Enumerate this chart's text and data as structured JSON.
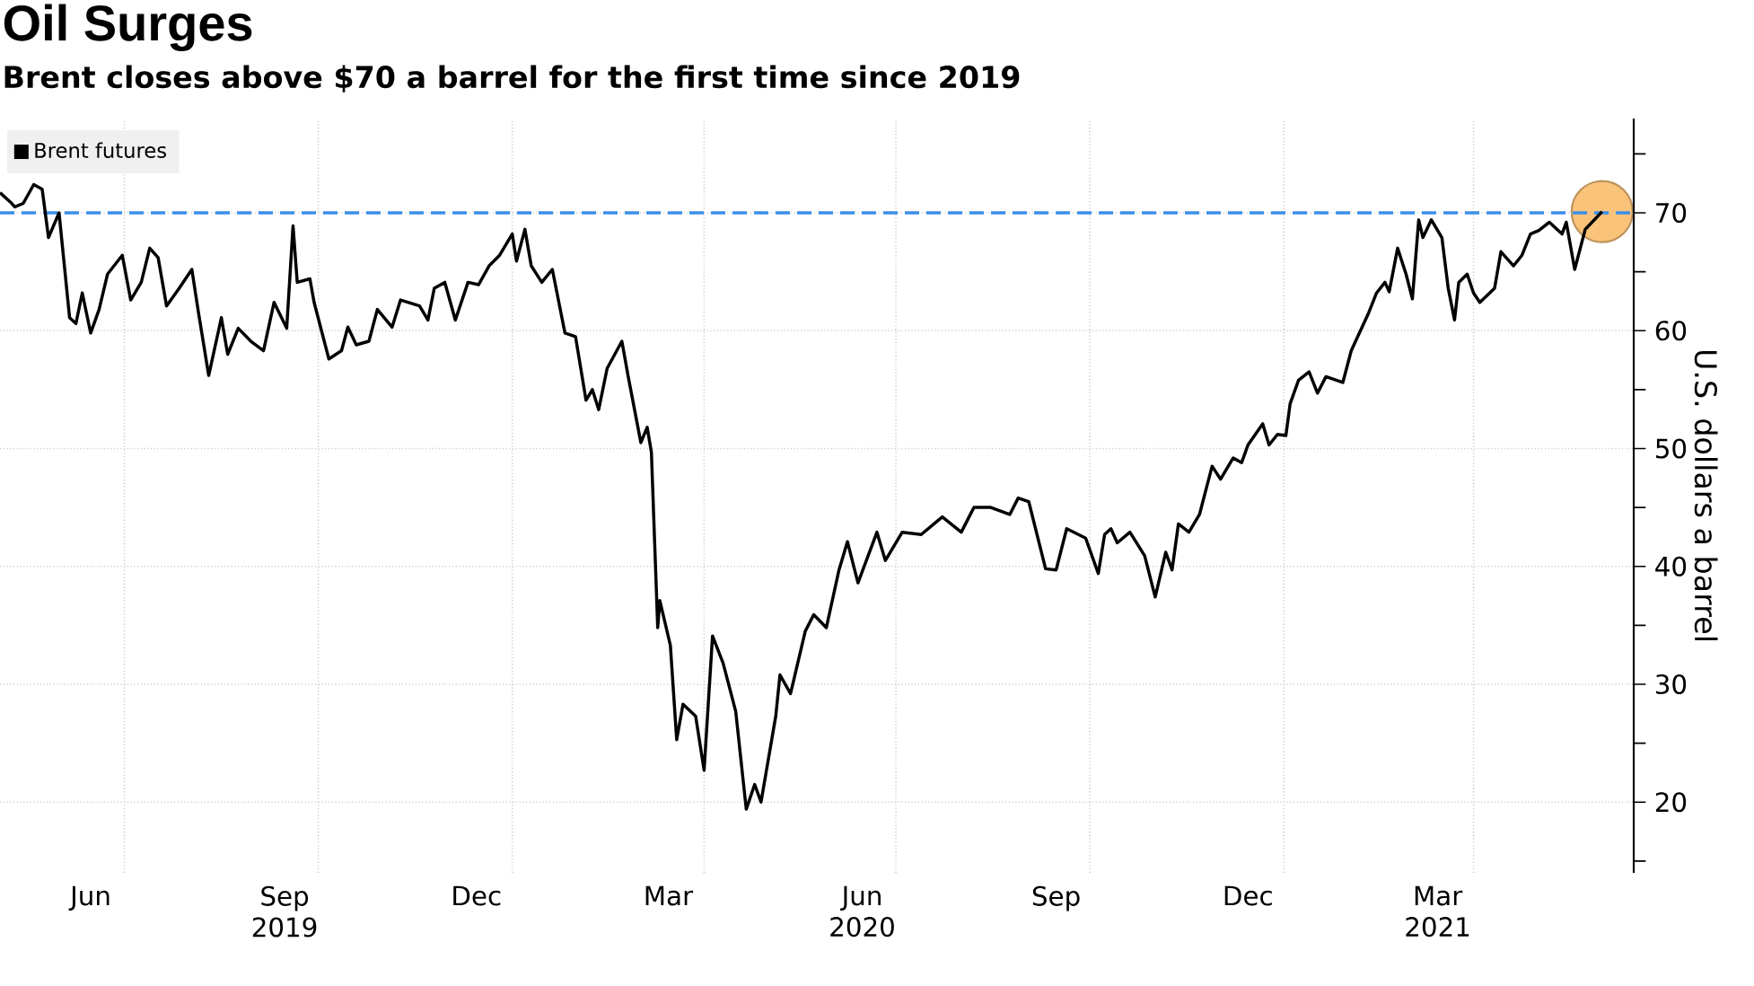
{
  "chart_data": {
    "type": "line",
    "title": "Oil Surges",
    "subtitle": "Brent closes above $70 a barrel for the first time since 2019",
    "ylabel": "U.S. dollars a barrel",
    "xlim": [
      "2019-05-03",
      "2021-06-16"
    ],
    "ylim": [
      14,
      78
    ],
    "xticks": [
      {
        "value": "2019-06-15",
        "label": "Jun"
      },
      {
        "value": "2019-07-01",
        "label": null
      },
      {
        "value": "2019-09-15",
        "label": "Sep 2019"
      },
      {
        "value": "2019-10-01",
        "label": null
      },
      {
        "value": "2019-12-15",
        "label": "Dec"
      },
      {
        "value": "2020-01-01",
        "label": null
      },
      {
        "value": "2020-03-15",
        "label": "Mar"
      },
      {
        "value": "2020-04-01",
        "label": null
      },
      {
        "value": "2020-06-15",
        "label": "Jun 2020"
      },
      {
        "value": "2020-07-01",
        "label": null
      },
      {
        "value": "2020-09-15",
        "label": "Sep"
      },
      {
        "value": "2020-10-01",
        "label": null
      },
      {
        "value": "2020-12-15",
        "label": "Dec"
      },
      {
        "value": "2021-01-01",
        "label": null
      },
      {
        "value": "2021-03-15",
        "label": "Mar 2021"
      },
      {
        "value": "2021-04-01",
        "label": null
      }
    ],
    "yticks": [
      {
        "value": 15,
        "label": null
      },
      20,
      {
        "value": 25,
        "label": null
      },
      30,
      {
        "value": 35,
        "label": null
      },
      40,
      {
        "value": 45,
        "label": null
      },
      50,
      {
        "value": 55,
        "label": null
      },
      60,
      {
        "value": 65,
        "label": null
      },
      70,
      {
        "value": 75,
        "label": null
      }
    ],
    "grid": true,
    "legend": "top left",
    "ref_lines": [
      {
        "axis": "y",
        "value": 70,
        "color": "#3b8fe8",
        "line_style": "dashed"
      }
    ],
    "series": [
      {
        "type": "scatter",
        "marker": "circle",
        "color": "#f9c37a",
        "x": [
          "2021-06-01"
        ],
        "values": [
          70.1
        ]
      },
      {
        "name": "Brent futures",
        "color": "#000000",
        "marker": "none",
        "x": [
          "2019-05-03",
          "2019-05-08",
          "2019-05-10",
          "2019-05-14",
          "2019-05-19",
          "2019-05-23",
          "2019-05-26",
          "2019-05-31",
          "2019-06-05",
          "2019-06-08",
          "2019-06-11",
          "2019-06-15",
          "2019-06-19",
          "2019-06-23",
          "2019-06-30",
          "2019-07-04",
          "2019-07-09",
          "2019-07-13",
          "2019-07-17",
          "2019-07-21",
          "2019-07-27",
          "2019-08-02",
          "2019-08-05",
          "2019-08-10",
          "2019-08-16",
          "2019-08-19",
          "2019-08-24",
          "2019-08-30",
          "2019-09-05",
          "2019-09-10",
          "2019-09-16",
          "2019-09-19",
          "2019-09-21",
          "2019-09-27",
          "2019-09-29",
          "2019-10-06",
          "2019-10-12",
          "2019-10-15",
          "2019-10-19",
          "2019-10-25",
          "2019-10-29",
          "2019-11-05",
          "2019-11-09",
          "2019-11-18",
          "2019-11-22",
          "2019-11-25",
          "2019-11-30",
          "2019-12-05",
          "2019-12-11",
          "2019-12-16",
          "2019-12-21",
          "2019-12-26",
          "2020-01-01",
          "2020-01-03",
          "2020-01-07",
          "2020-01-10",
          "2020-01-15",
          "2020-01-20",
          "2020-01-26",
          "2020-01-31",
          "2020-02-05",
          "2020-02-08",
          "2020-02-11",
          "2020-02-15",
          "2020-02-22",
          "2020-02-25",
          "2020-03-02",
          "2020-03-05",
          "2020-03-07",
          "2020-03-10",
          "2020-03-11",
          "2020-03-16",
          "2020-03-19",
          "2020-03-22",
          "2020-03-28",
          "2020-04-01",
          "2020-04-05",
          "2020-04-10",
          "2020-04-16",
          "2020-04-21",
          "2020-04-25",
          "2020-04-28",
          "2020-05-05",
          "2020-05-07",
          "2020-05-12",
          "2020-05-19",
          "2020-05-23",
          "2020-05-29",
          "2020-06-04",
          "2020-06-08",
          "2020-06-13",
          "2020-06-22",
          "2020-06-26",
          "2020-07-04",
          "2020-07-13",
          "2020-07-23",
          "2020-08-01",
          "2020-08-07",
          "2020-08-15",
          "2020-08-24",
          "2020-08-28",
          "2020-09-02",
          "2020-09-10",
          "2020-09-15",
          "2020-09-20",
          "2020-09-29",
          "2020-10-05",
          "2020-10-08",
          "2020-10-11",
          "2020-10-14",
          "2020-10-20",
          "2020-10-27",
          "2020-11-01",
          "2020-11-06",
          "2020-11-09",
          "2020-11-12",
          "2020-11-17",
          "2020-11-22",
          "2020-11-28",
          "2020-12-02",
          "2020-12-08",
          "2020-12-12",
          "2020-12-15",
          "2020-12-22",
          "2020-12-25",
          "2020-12-29",
          "2021-01-02",
          "2021-01-04",
          "2021-01-08",
          "2021-01-13",
          "2021-01-17",
          "2021-01-21",
          "2021-01-29",
          "2021-02-02",
          "2021-02-10",
          "2021-02-14",
          "2021-02-18",
          "2021-02-20",
          "2021-02-24",
          "2021-02-28",
          "2021-03-03",
          "2021-03-06",
          "2021-03-08",
          "2021-03-12",
          "2021-03-17",
          "2021-03-20",
          "2021-03-23",
          "2021-03-25",
          "2021-03-29",
          "2021-04-01",
          "2021-04-04",
          "2021-04-11",
          "2021-04-14",
          "2021-04-20",
          "2021-04-24",
          "2021-04-28",
          "2021-05-02",
          "2021-05-07",
          "2021-05-13",
          "2021-05-15",
          "2021-05-19",
          "2021-05-24",
          "2021-06-01"
        ],
        "values": [
          71.7,
          70.9,
          70.5,
          70.8,
          72.4,
          72.0,
          67.9,
          70.0,
          61.1,
          60.6,
          63.2,
          59.8,
          61.8,
          64.8,
          66.4,
          62.6,
          64.1,
          67.0,
          66.2,
          62.1,
          63.6,
          65.2,
          61.7,
          56.2,
          61.1,
          58.0,
          60.2,
          59.1,
          58.3,
          62.4,
          60.2,
          68.9,
          64.1,
          64.4,
          62.4,
          57.6,
          58.3,
          60.3,
          58.8,
          59.1,
          61.8,
          60.3,
          62.6,
          62.1,
          60.9,
          63.6,
          64.1,
          60.9,
          64.1,
          63.9,
          65.5,
          66.4,
          68.2,
          65.9,
          68.6,
          65.5,
          64.1,
          65.2,
          59.8,
          59.5,
          54.1,
          55.0,
          53.3,
          56.8,
          59.1,
          56.1,
          50.5,
          51.8,
          49.7,
          34.8,
          37.1,
          33.3,
          25.3,
          28.3,
          27.3,
          22.7,
          34.1,
          31.8,
          27.7,
          19.4,
          21.5,
          20.0,
          27.3,
          30.8,
          29.2,
          34.5,
          35.9,
          34.8,
          39.7,
          42.1,
          38.6,
          42.9,
          40.5,
          42.9,
          42.7,
          44.2,
          42.9,
          45.0,
          45.0,
          44.4,
          45.8,
          45.5,
          39.8,
          39.7,
          43.2,
          42.4,
          39.4,
          42.7,
          43.2,
          42.0,
          42.9,
          40.9,
          37.4,
          41.2,
          39.7,
          43.6,
          42.9,
          44.4,
          48.5,
          47.4,
          49.2,
          48.8,
          50.3,
          52.1,
          50.3,
          51.2,
          51.1,
          53.8,
          55.8,
          56.5,
          54.7,
          56.1,
          55.6,
          58.3,
          61.4,
          63.2,
          64.1,
          63.3,
          67.0,
          64.8,
          62.7,
          69.4,
          67.9,
          69.4,
          67.9,
          63.6,
          60.9,
          64.1,
          64.8,
          63.2,
          62.4,
          63.6,
          66.7,
          65.5,
          66.4,
          68.2,
          68.5,
          69.2,
          68.2,
          69.2,
          65.2,
          68.6,
          70.1
        ]
      }
    ]
  }
}
